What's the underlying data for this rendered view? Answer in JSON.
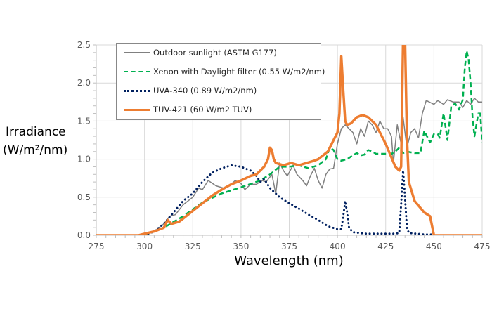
{
  "chart_data": {
    "type": "line",
    "title": "",
    "xlabel": "Wavelength (nm)",
    "ylabel": "Irradiance (W/m²/nm)",
    "ylabel_line1": "Irradiance",
    "ylabel_line2": "(W/m²/nm)",
    "xlim": [
      275,
      475
    ],
    "ylim": [
      0,
      2.5
    ],
    "xticks": [
      "275",
      "300",
      "325",
      "350",
      "375",
      "400",
      "425",
      "450",
      "475"
    ],
    "yticks": [
      "0.0",
      "0.5",
      "1.0",
      "1.5",
      "2.0",
      "2.5"
    ],
    "grid": true,
    "legend_position": "top-left",
    "series": [
      {
        "name": "Outdoor sunlight (ASTM G177)",
        "color": "#808080",
        "style": "solid",
        "x": [
          297,
          305,
          310,
          313,
          316,
          320,
          325,
          328,
          330,
          333,
          337,
          341,
          344,
          347,
          350,
          352,
          355,
          358,
          361,
          363,
          366,
          368,
          370,
          372,
          374,
          377,
          379,
          382,
          384,
          386,
          388,
          390,
          392,
          394,
          396,
          398,
          400,
          402,
          404,
          406,
          408,
          410,
          412,
          414,
          416,
          418,
          420,
          422,
          424,
          426,
          428,
          429,
          431,
          433,
          434,
          436,
          438,
          440,
          442,
          444,
          446,
          450,
          452,
          455,
          457,
          460,
          463,
          465,
          467,
          469,
          471,
          473,
          475
        ],
        "y": [
          0,
          0.05,
          0.15,
          0.25,
          0.27,
          0.4,
          0.5,
          0.62,
          0.6,
          0.72,
          0.65,
          0.62,
          0.65,
          0.72,
          0.68,
          0.6,
          0.67,
          0.67,
          0.72,
          0.7,
          0.8,
          0.55,
          0.95,
          0.85,
          0.78,
          0.92,
          0.8,
          0.72,
          0.65,
          0.78,
          0.88,
          0.72,
          0.62,
          0.8,
          0.87,
          0.88,
          1.2,
          1.4,
          1.45,
          1.4,
          1.35,
          1.2,
          1.4,
          1.3,
          1.5,
          1.45,
          1.35,
          1.5,
          1.4,
          1.4,
          1.3,
          0.95,
          1.45,
          1.2,
          1.55,
          1.15,
          1.35,
          1.4,
          1.28,
          1.6,
          1.77,
          1.72,
          1.77,
          1.72,
          1.78,
          1.75,
          1.75,
          1.68,
          1.77,
          1.72,
          1.8,
          1.75,
          1.75
        ]
      },
      {
        "name": "Xenon with Daylight filter (0.55 W/m2/nm)",
        "color": "#00B050",
        "style": "dashed",
        "x": [
          300,
          310,
          320,
          330,
          340,
          350,
          360,
          365,
          370,
          375,
          380,
          385,
          390,
          394,
          396,
          398,
          400,
          402,
          405,
          408,
          410,
          412,
          414,
          416,
          418,
          420,
          425,
          428,
          430,
          432,
          434,
          436,
          440,
          443,
          445,
          448,
          450,
          452,
          453,
          455,
          457,
          459,
          461,
          463,
          465,
          466,
          467,
          468,
          469,
          470,
          471,
          473,
          474,
          475
        ],
        "y": [
          0,
          0.1,
          0.25,
          0.43,
          0.55,
          0.63,
          0.72,
          0.8,
          0.9,
          0.9,
          0.92,
          0.88,
          0.92,
          1.0,
          1.15,
          1.12,
          1.0,
          0.98,
          1.0,
          1.05,
          1.08,
          1.05,
          1.06,
          1.12,
          1.1,
          1.07,
          1.07,
          1.07,
          1.1,
          1.15,
          1.08,
          1.1,
          1.08,
          1.08,
          1.37,
          1.22,
          1.33,
          1.33,
          1.28,
          1.6,
          1.25,
          1.7,
          1.73,
          1.65,
          1.78,
          2.2,
          2.42,
          2.3,
          2.0,
          1.55,
          1.3,
          1.6,
          1.6,
          1.22
        ]
      },
      {
        "name": "UVA-340 (0.89 W/m2/nm)",
        "color": "#002060",
        "style": "dotted",
        "x": [
          300,
          305,
          310,
          315,
          320,
          325,
          330,
          335,
          340,
          345,
          350,
          355,
          358,
          360,
          362,
          365,
          370,
          375,
          380,
          385,
          390,
          395,
          400,
          402,
          403,
          404,
          405,
          406,
          408,
          415,
          420,
          430,
          432,
          433,
          434,
          435,
          436,
          437,
          445,
          450
        ],
        "y": [
          0,
          0.05,
          0.15,
          0.3,
          0.45,
          0.55,
          0.7,
          0.82,
          0.88,
          0.92,
          0.9,
          0.85,
          0.78,
          0.7,
          0.74,
          0.62,
          0.5,
          0.42,
          0.35,
          0.27,
          0.2,
          0.12,
          0.08,
          0.08,
          0.25,
          0.45,
          0.3,
          0.1,
          0.04,
          0.02,
          0.02,
          0.02,
          0.03,
          0.4,
          0.85,
          0.5,
          0.1,
          0.03,
          0.01,
          0.01
        ]
      },
      {
        "name": "TUV-421 (60 W/m2 TUV)",
        "color": "#ED7D31",
        "style": "solid",
        "x": [
          275,
          297,
          300,
          305,
          310,
          312,
          314,
          318,
          320,
          325,
          330,
          335,
          340,
          345,
          350,
          355,
          358,
          360,
          362,
          364,
          365,
          366,
          367,
          368,
          372,
          376,
          380,
          384,
          388,
          390,
          395,
          398,
          400,
          401,
          402,
          403,
          404,
          405,
          407,
          410,
          413,
          416,
          420,
          425,
          430,
          432,
          433,
          434,
          435,
          436,
          437,
          440,
          445,
          448,
          450,
          475
        ],
        "y": [
          0,
          0,
          0.02,
          0.05,
          0.1,
          0.2,
          0.15,
          0.18,
          0.22,
          0.32,
          0.42,
          0.52,
          0.6,
          0.67,
          0.72,
          0.78,
          0.8,
          0.85,
          0.9,
          1.0,
          1.15,
          1.12,
          1.0,
          0.95,
          0.92,
          0.95,
          0.92,
          0.95,
          0.98,
          1.0,
          1.1,
          1.25,
          1.35,
          1.6,
          2.35,
          1.9,
          1.5,
          1.45,
          1.47,
          1.55,
          1.58,
          1.55,
          1.45,
          1.2,
          0.9,
          0.85,
          0.9,
          2.6,
          2.6,
          1.3,
          0.7,
          0.45,
          0.3,
          0.25,
          0,
          0
        ]
      }
    ]
  }
}
